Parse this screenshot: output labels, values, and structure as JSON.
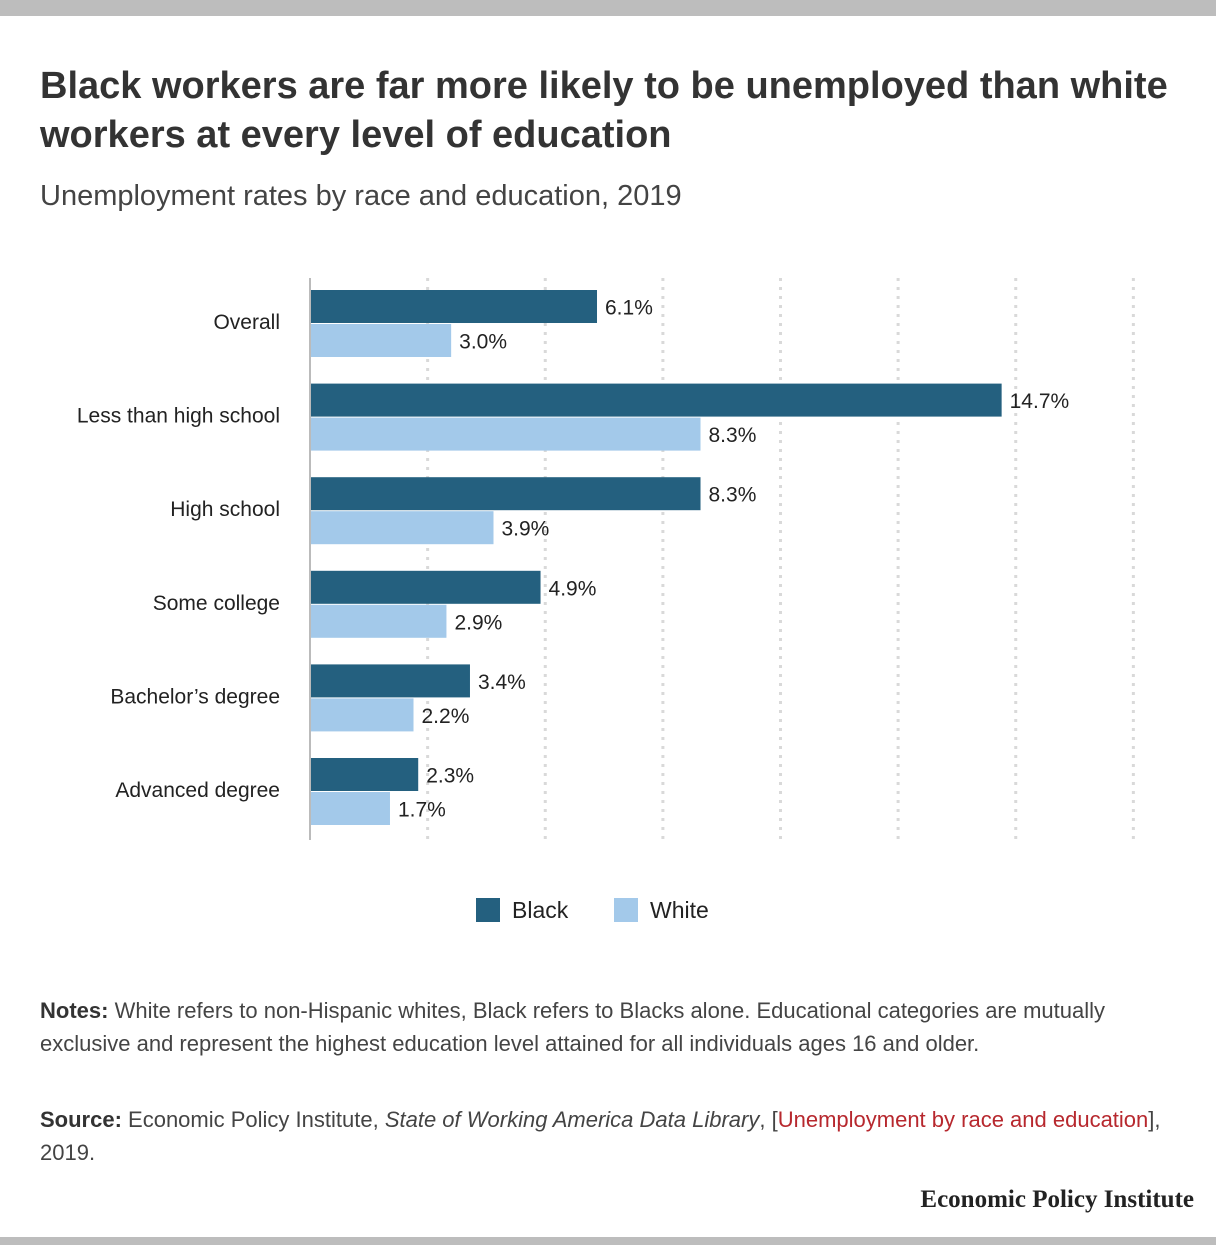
{
  "title": "Black workers are far more likely to be unemployed than white workers at every level of education",
  "subtitle": "Unemployment rates by race and education, 2019",
  "colors": {
    "black_series": "#24607f",
    "white_series": "#a3c9ea",
    "gridline": "#d9d9d9",
    "axis": "#bbbbbb",
    "link": "#b7282e"
  },
  "chart_data": {
    "type": "bar",
    "orientation": "horizontal",
    "title": "Black workers are far more likely to be unemployed than white workers at every level of education",
    "subtitle": "Unemployment rates by race and education, 2019",
    "categories": [
      "Overall",
      "Less than high school",
      "High school",
      "Some college",
      "Bachelor’s degree",
      "Advanced degree"
    ],
    "series": [
      {
        "name": "Black",
        "values": [
          6.1,
          14.7,
          8.3,
          4.9,
          3.4,
          2.3
        ],
        "labels": [
          "6.1%",
          "14.7%",
          "8.3%",
          "4.9%",
          "3.4%",
          "2.3%"
        ],
        "color": "#24607f"
      },
      {
        "name": "White",
        "values": [
          3.0,
          8.3,
          3.9,
          2.9,
          2.2,
          1.7
        ],
        "labels": [
          "3.0%",
          "8.3%",
          "3.9%",
          "2.9%",
          "2.2%",
          "1.7%"
        ],
        "color": "#a3c9ea"
      }
    ],
    "xlim": [
      0,
      17.5
    ],
    "gridlines": [
      2.5,
      5,
      7.5,
      10,
      12.5,
      15,
      17.5
    ],
    "grid": true,
    "legend_position": "bottom-center",
    "xlabel": "",
    "ylabel": ""
  },
  "legend": {
    "items": [
      "Black",
      "White"
    ]
  },
  "notes": {
    "label": "Notes:",
    "text": " White refers to non-Hispanic whites, Black refers to Blacks alone. Educational categories are mutually exclusive and represent the highest education level attained for all individuals ages 16 and older."
  },
  "source": {
    "label": "Source:",
    "text1": " Economic Policy Institute, ",
    "publication": "State of Working America Data Library",
    "text2": ", [",
    "link_text": "Unemployment by race and education",
    "text3": "], 2019."
  },
  "brand": "Economic Policy Institute"
}
